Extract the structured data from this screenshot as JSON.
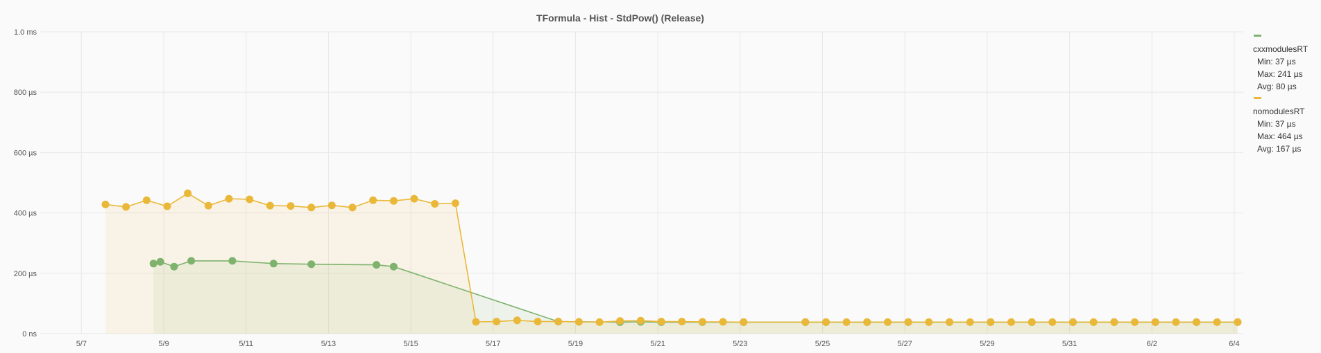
{
  "chart_data": {
    "type": "line",
    "title": "TFormula - Hist - StdPow() (Release)",
    "xlabel": "",
    "ylabel": "",
    "x_range": [
      "2024-05-06",
      "2024-06-04"
    ],
    "x_tick_values": [
      "2024-05-07",
      "2024-05-09",
      "2024-05-11",
      "2024-05-13",
      "2024-05-15",
      "2024-05-17",
      "2024-05-19",
      "2024-05-21",
      "2024-05-23",
      "2024-05-25",
      "2024-05-27",
      "2024-05-29",
      "2024-05-31",
      "2024-06-02",
      "2024-06-04"
    ],
    "x_tick_labels": [
      "5/7",
      "5/9",
      "5/11",
      "5/13",
      "5/15",
      "5/17",
      "5/19",
      "5/21",
      "5/23",
      "5/25",
      "5/27",
      "5/29",
      "5/31",
      "6/2",
      "6/4"
    ],
    "y_unit": "µs",
    "ylim": [
      0,
      1000
    ],
    "y_tick_values": [
      0,
      200,
      400,
      600,
      800,
      1000
    ],
    "y_tick_labels": [
      "0 ns",
      "200 µs",
      "400 µs",
      "600 µs",
      "800 µs",
      "1.0 ms"
    ],
    "grid": true,
    "legend_position": "right",
    "series": [
      {
        "name": "cxxmodulesRT",
        "color": "#7eb26d",
        "stats": {
          "min": "Min: 37 µs",
          "max": "Max: 241 µs",
          "avg": "Avg: 80 µs"
        },
        "points": [
          [
            "2024-05-08 18:00",
            232
          ],
          [
            "2024-05-08 22:00",
            238
          ],
          [
            "2024-05-09 06:00",
            222
          ],
          [
            "2024-05-09 16:00",
            241
          ],
          [
            "2024-05-10 16:00",
            241
          ],
          [
            "2024-05-11 16:00",
            232
          ],
          [
            "2024-05-12 14:00",
            230
          ],
          [
            "2024-05-14 04:00",
            228
          ],
          [
            "2024-05-14 14:00",
            222
          ],
          [
            "2024-05-18 14:00",
            40
          ],
          [
            "2024-05-20 02:00",
            38
          ],
          [
            "2024-05-20 14:00",
            39
          ],
          [
            "2024-05-21 02:00",
            38
          ],
          [
            "2024-05-22 02:00",
            38
          ],
          [
            "2024-05-23 02:00",
            38
          ],
          [
            "2024-05-24 14:00",
            38
          ],
          [
            "2024-05-25 02:00",
            38
          ],
          [
            "2024-05-26 02:00",
            38
          ],
          [
            "2024-05-27 02:00",
            38
          ],
          [
            "2024-05-28 02:00",
            38
          ],
          [
            "2024-05-29 02:00",
            38
          ],
          [
            "2024-05-30 02:00",
            38
          ],
          [
            "2024-05-31 02:00",
            38
          ],
          [
            "2024-06-01 02:00",
            38
          ],
          [
            "2024-06-02 02:00",
            38
          ],
          [
            "2024-06-03 02:00",
            38
          ],
          [
            "2024-06-04 02:00",
            38
          ]
        ]
      },
      {
        "name": "nomodulesRT",
        "color": "#eab839",
        "stats": {
          "min": "Min: 37 µs",
          "max": "Max: 464 µs",
          "avg": "Avg: 167 µs"
        },
        "points": [
          [
            "2024-05-07 14:00",
            428
          ],
          [
            "2024-05-08 02:00",
            420
          ],
          [
            "2024-05-08 14:00",
            442
          ],
          [
            "2024-05-09 02:00",
            422
          ],
          [
            "2024-05-09 14:00",
            465
          ],
          [
            "2024-05-10 02:00",
            424
          ],
          [
            "2024-05-10 14:00",
            447
          ],
          [
            "2024-05-11 02:00",
            445
          ],
          [
            "2024-05-11 14:00",
            424
          ],
          [
            "2024-05-12 02:00",
            423
          ],
          [
            "2024-05-12 14:00",
            418
          ],
          [
            "2024-05-13 02:00",
            425
          ],
          [
            "2024-05-13 14:00",
            418
          ],
          [
            "2024-05-14 02:00",
            442
          ],
          [
            "2024-05-14 14:00",
            440
          ],
          [
            "2024-05-15 02:00",
            447
          ],
          [
            "2024-05-15 14:00",
            430
          ],
          [
            "2024-05-16 02:00",
            432
          ],
          [
            "2024-05-16 14:00",
            39
          ],
          [
            "2024-05-17 02:00",
            40
          ],
          [
            "2024-05-17 14:00",
            44
          ],
          [
            "2024-05-18 02:00",
            40
          ],
          [
            "2024-05-18 14:00",
            40
          ],
          [
            "2024-05-19 02:00",
            39
          ],
          [
            "2024-05-19 14:00",
            38
          ],
          [
            "2024-05-20 02:00",
            42
          ],
          [
            "2024-05-20 14:00",
            43
          ],
          [
            "2024-05-21 02:00",
            40
          ],
          [
            "2024-05-21 14:00",
            40
          ],
          [
            "2024-05-22 02:00",
            39
          ],
          [
            "2024-05-22 14:00",
            39
          ],
          [
            "2024-05-23 02:00",
            38
          ],
          [
            "2024-05-24 14:00",
            38
          ],
          [
            "2024-05-25 02:00",
            38
          ],
          [
            "2024-05-25 14:00",
            38
          ],
          [
            "2024-05-26 02:00",
            38
          ],
          [
            "2024-05-26 14:00",
            38
          ],
          [
            "2024-05-27 02:00",
            38
          ],
          [
            "2024-05-27 14:00",
            38
          ],
          [
            "2024-05-28 02:00",
            38
          ],
          [
            "2024-05-28 14:00",
            38
          ],
          [
            "2024-05-29 02:00",
            38
          ],
          [
            "2024-05-29 14:00",
            38
          ],
          [
            "2024-05-30 02:00",
            38
          ],
          [
            "2024-05-30 14:00",
            38
          ],
          [
            "2024-05-31 02:00",
            38
          ],
          [
            "2024-05-31 14:00",
            38
          ],
          [
            "2024-06-01 02:00",
            38
          ],
          [
            "2024-06-01 14:00",
            38
          ],
          [
            "2024-06-02 02:00",
            38
          ],
          [
            "2024-06-02 14:00",
            38
          ],
          [
            "2024-06-03 02:00",
            38
          ],
          [
            "2024-06-03 14:00",
            38
          ],
          [
            "2024-06-04 02:00",
            38
          ]
        ]
      }
    ]
  }
}
